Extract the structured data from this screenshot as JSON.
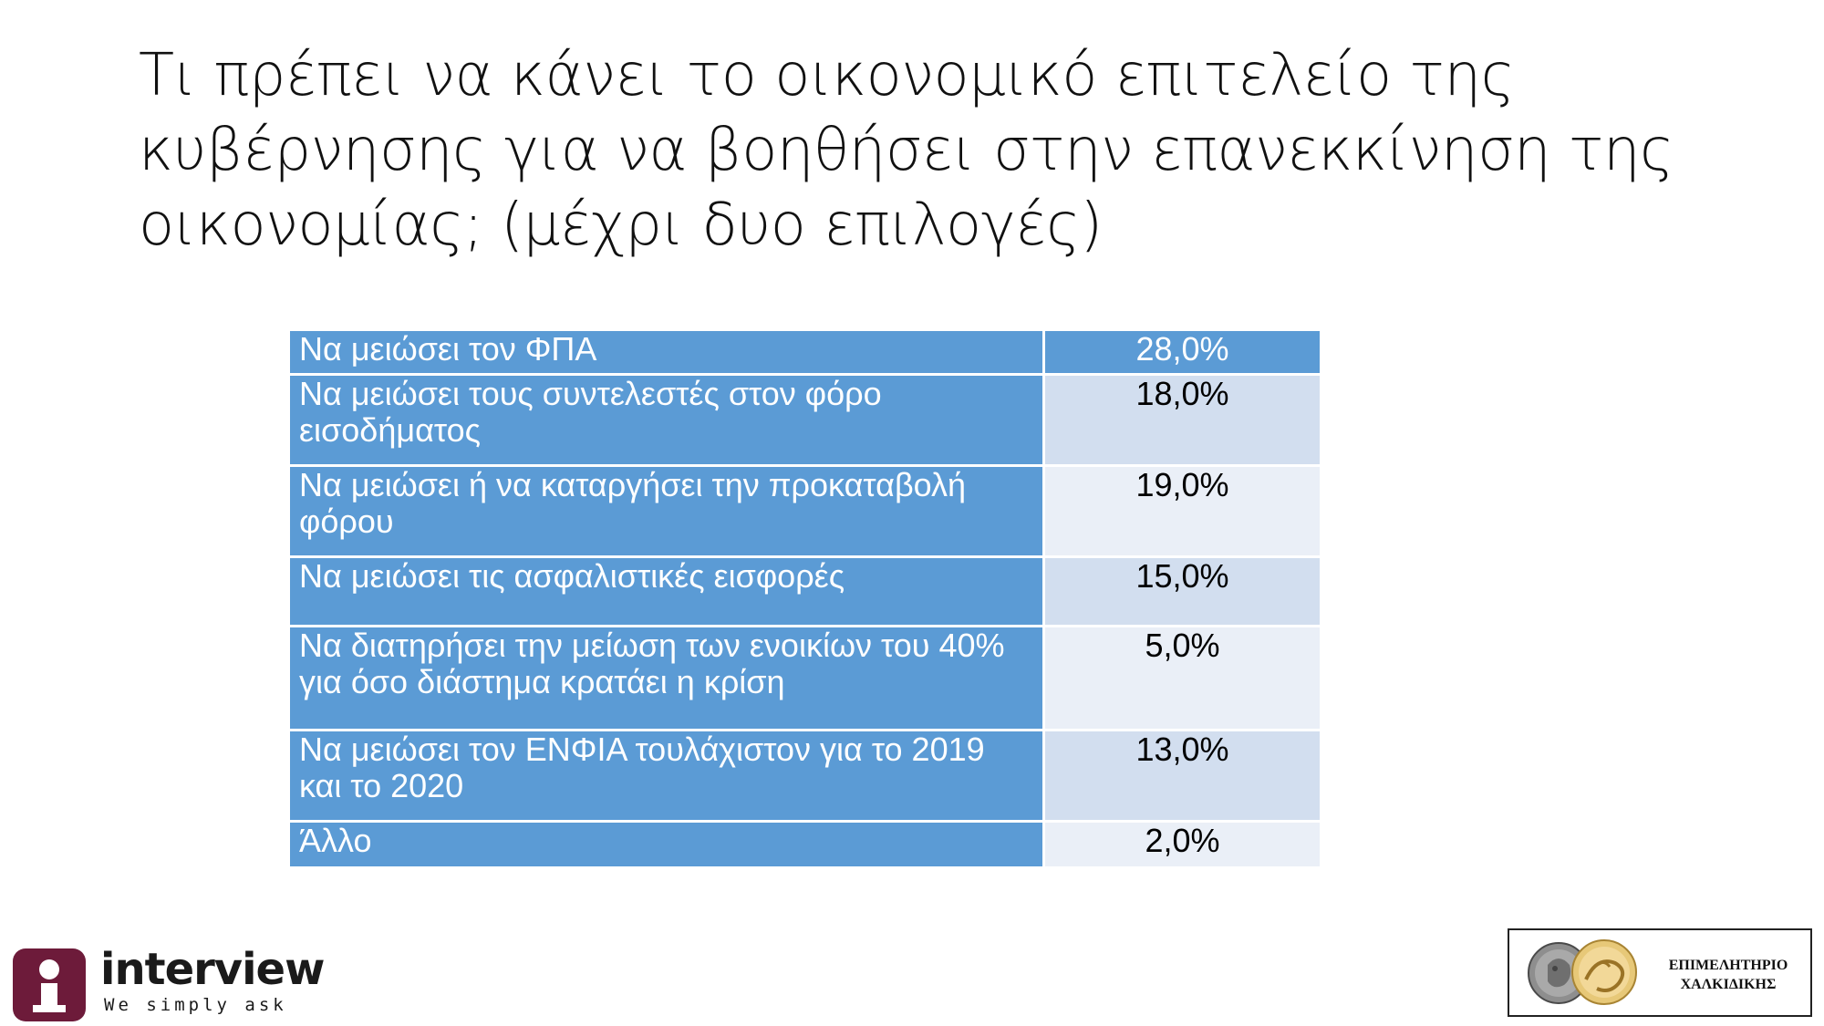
{
  "title": "Τι πρέπει να κάνει το οικονομικό επιτελείο της κυβέρνησης για να βοηθήσει στην επανεκκίνηση της οικονομίας; (μέχρι δυο επιλογές)",
  "table": {
    "rows": [
      {
        "label": "Να μειώσει τον ΦΠΑ",
        "value": "28,0%"
      },
      {
        "label": "Να μειώσει τους συντελεστές στον φόρο εισοδήματος",
        "value": "18,0%"
      },
      {
        "label": "Να μειώσει ή να καταργήσει την προκαταβολή φόρου",
        "value": "19,0%"
      },
      {
        "label": "Να μειώσει τις ασφαλιστικές εισφορές",
        "value": "15,0%"
      },
      {
        "label": "Να διατηρήσει την μείωση των ενοικίων του 40% για όσο διάστημα κρατάει η κρίση",
        "value": "5,0%"
      },
      {
        "label": "Να μειώσει τον ΕΝΦΙΑ τουλάχιστον για το 2019 και το 2020",
        "value": "13,0%"
      },
      {
        "label": "Άλλο",
        "value": "2,0%"
      }
    ]
  },
  "logos": {
    "interview": {
      "name": "interview",
      "tagline": "We simply ask",
      "color": "#6d1b3a"
    },
    "chamber": {
      "line1": "ΕΠΙΜΕΛΗΤΗΡΙΟ",
      "line2": "ΧΑΛΚΙΔΙΚΗΣ"
    }
  },
  "colors": {
    "label_bg": "#5b9bd5",
    "value_bg_odd": "#d2deef",
    "value_bg_even": "#eaeff7"
  }
}
